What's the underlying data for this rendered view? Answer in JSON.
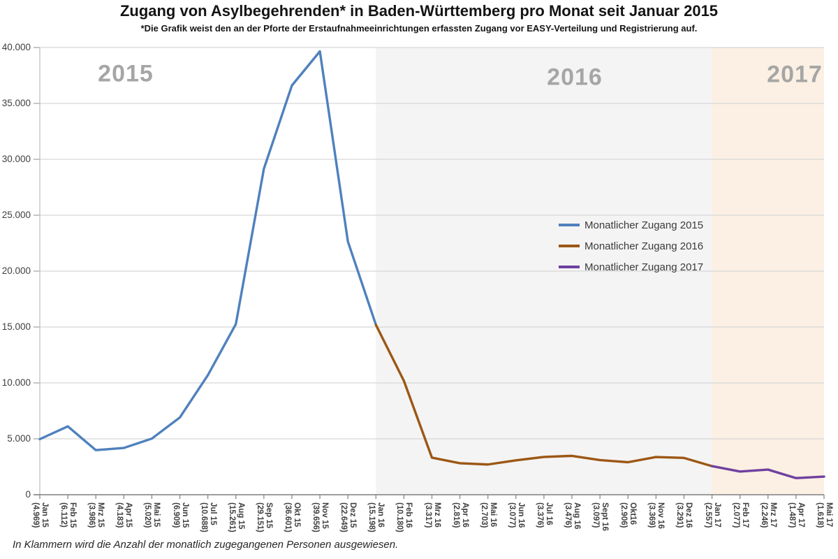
{
  "chart": {
    "title": "Zugang von Asylbegehrenden* in Baden-Württemberg pro Monat seit Januar 2015",
    "subtitle": "*Die Grafik weist den an der Pforte der Erstaufnahmeeinrichtungen erfassten Zugang vor EASY-Verteilung und Registrierung auf.",
    "footnote": "In Klammern wird die Anzahl der monatlich zugegangenen Personen ausgewiesen."
  },
  "chart_data": {
    "type": "line",
    "title": "Zugang von Asylbegehrenden* in Baden-Württemberg pro Monat seit Januar 2015",
    "subtitle": "*Die Grafik weist den an der Pforte der Erstaufnahmeeinrichtungen erfassten Zugang vor EASY-Verteilung und Registrierung auf.",
    "ylim": [
      0,
      40000
    ],
    "y_tick_step": 5000,
    "y_tick_labels": [
      "0",
      "5.000",
      "10.000",
      "15.000",
      "20.000",
      "25.000",
      "30.000",
      "35.000",
      "40.000"
    ],
    "grid": true,
    "categories": [
      "Jan 15",
      "Feb 15",
      "Mrz 15",
      "Apr 15",
      "Mai 15",
      "Jun 15",
      "Jul 15",
      "Aug 15",
      "Sep 15",
      "Okt 15",
      "Nov 15",
      "Dez 15",
      "Jan 16",
      "Feb 16",
      "Mrz 16",
      "Apr 16",
      "Mai 16",
      "Jun 16",
      "Jul 16",
      "Aug 16",
      "Sept 16",
      "Okt16",
      "Nov 16",
      "Dez 16",
      "Jan 17",
      "Feb 17",
      "Mrz 17",
      "Apr 17",
      "Mai 17"
    ],
    "value_labels": [
      "(4.969)",
      "(6.112)",
      "(3.986)",
      "(4.183)",
      "(5.020)",
      "(6.909)",
      "(10.688)",
      "(15.261)",
      "(29.151)",
      "(36.601)",
      "(39.656)",
      "(22.649)",
      "(15.198)",
      "(10.180)",
      "(3.317)",
      "(2.816)",
      "(2.703)",
      "(3.077)",
      "(3.376)",
      "(3.476)",
      "(3.097)",
      "(2.906)",
      "(3.369)",
      "(3.291)",
      "(2.557)",
      "(2.077)",
      "(2.246)",
      "(1.487)",
      "(1.618)"
    ],
    "values": [
      4969,
      6112,
      3986,
      4183,
      5020,
      6909,
      10688,
      15261,
      29151,
      36601,
      39656,
      22649,
      15198,
      10180,
      3317,
      2816,
      2703,
      3077,
      3376,
      3476,
      3097,
      2906,
      3369,
      3291,
      2557,
      2077,
      2246,
      1487,
      1618
    ],
    "series": [
      {
        "name": "Monatlicher Zugang 2015",
        "color": "#4F81BD",
        "start_index": 0,
        "end_index": 12
      },
      {
        "name": "Monatlicher Zugang 2016",
        "color": "#9C5714",
        "start_index": 12,
        "end_index": 24
      },
      {
        "name": "Monatlicher Zugang 2017",
        "color": "#7040A0",
        "start_index": 24,
        "end_index": 28
      }
    ],
    "bands": [
      {
        "label": "2015",
        "color": "#FFFFFF",
        "start_index": 0,
        "end_index": 12
      },
      {
        "label": "2016",
        "color": "#F4F4F4",
        "start_index": 12,
        "end_index": 24
      },
      {
        "label": "2017",
        "color": "#FBF0E3",
        "start_index": 24,
        "end_index": 28
      }
    ],
    "legend": {
      "position": "middle-right",
      "entries": [
        "Monatlicher Zugang 2015",
        "Monatlicher Zugang 2016",
        "Monatlicher Zugang 2017"
      ]
    },
    "axis_colors": {
      "grid": "#D6D6D6",
      "y_axis": "#BFBFBF",
      "x_axis": "#7F7F7F",
      "year_label": "#A6A6A6"
    }
  }
}
